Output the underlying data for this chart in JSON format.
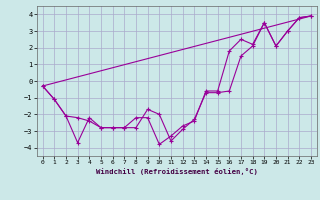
{
  "xlabel": "Windchill (Refroidissement éolien,°C)",
  "bg_color": "#cce8e8",
  "grid_color": "#aaaacc",
  "line_color": "#990099",
  "xlim": [
    -0.5,
    23.5
  ],
  "ylim": [
    -4.5,
    4.5
  ],
  "yticks": [
    -4,
    -3,
    -2,
    -1,
    0,
    1,
    2,
    3,
    4
  ],
  "xticks": [
    0,
    1,
    2,
    3,
    4,
    5,
    6,
    7,
    8,
    9,
    10,
    11,
    12,
    13,
    14,
    15,
    16,
    17,
    18,
    19,
    20,
    21,
    22,
    23
  ],
  "line1_x": [
    0,
    1,
    2,
    3,
    4,
    5,
    6,
    7,
    8,
    9,
    10,
    11,
    12,
    13,
    14,
    15,
    16,
    17,
    18,
    19,
    20,
    21,
    22,
    23
  ],
  "line1_y": [
    -0.3,
    -1.1,
    -2.1,
    -2.2,
    -2.4,
    -2.8,
    -2.8,
    -2.8,
    -2.8,
    -1.7,
    -2.0,
    -3.6,
    -2.9,
    -2.3,
    -0.7,
    -0.7,
    -0.6,
    1.5,
    2.1,
    3.5,
    2.1,
    3.0,
    3.8,
    3.9
  ],
  "line2_x": [
    0,
    1,
    2,
    3,
    4,
    5,
    6,
    7,
    8,
    9,
    10,
    11,
    12,
    13,
    14,
    15,
    16,
    17,
    18,
    19,
    20,
    21,
    22,
    23
  ],
  "line2_y": [
    -0.3,
    -1.1,
    -2.1,
    -3.7,
    -2.2,
    -2.8,
    -2.8,
    -2.8,
    -2.2,
    -2.2,
    -3.8,
    -3.3,
    -2.7,
    -2.4,
    -0.6,
    -0.6,
    1.8,
    2.5,
    2.2,
    3.5,
    2.1,
    3.0,
    3.8,
    3.9
  ],
  "line3_x": [
    0,
    23
  ],
  "line3_y": [
    -0.3,
    3.9
  ]
}
